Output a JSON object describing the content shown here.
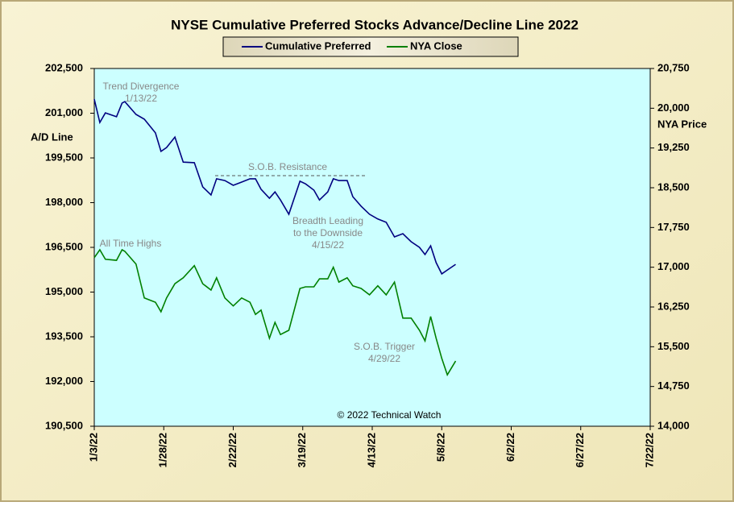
{
  "chart_data": {
    "type": "line",
    "title": "NYSE Cumulative Preferred Stocks Advance/Decline Line 2022",
    "y_label": "A/D Line",
    "y2_label": "NYA Price",
    "x": [
      "2022-01-03",
      "2022-01-05",
      "2022-01-07",
      "2022-01-11",
      "2022-01-13",
      "2022-01-14",
      "2022-01-18",
      "2022-01-21",
      "2022-01-25",
      "2022-01-27",
      "2022-01-29",
      "2022-02-01",
      "2022-02-04",
      "2022-02-08",
      "2022-02-11",
      "2022-02-14",
      "2022-02-16",
      "2022-02-19",
      "2022-02-22",
      "2022-02-25",
      "2022-02-28",
      "2022-03-02",
      "2022-03-04",
      "2022-03-07",
      "2022-03-09",
      "2022-03-11",
      "2022-03-14",
      "2022-03-18",
      "2022-03-20",
      "2022-03-23",
      "2022-03-25",
      "2022-03-28",
      "2022-03-30",
      "2022-04-01",
      "2022-04-04",
      "2022-04-06",
      "2022-04-09",
      "2022-04-12",
      "2022-04-15",
      "2022-04-18",
      "2022-04-21",
      "2022-04-24",
      "2022-04-27",
      "2022-04-30",
      "2022-05-02",
      "2022-05-04",
      "2022-05-06",
      "2022-05-08",
      "2022-05-10",
      "2022-05-13"
    ],
    "series": [
      {
        "name": "Cumulative Preferred",
        "color": "#000080",
        "axis": "y",
        "values": [
          201470,
          200690,
          201010,
          200880,
          201340,
          201390,
          200960,
          200800,
          200340,
          199720,
          199850,
          200200,
          199360,
          199340,
          198530,
          198260,
          198800,
          198740,
          198580,
          198690,
          198800,
          198800,
          198450,
          198150,
          198360,
          198090,
          197610,
          198720,
          198630,
          198420,
          198090,
          198360,
          198800,
          198740,
          198740,
          198200,
          197880,
          197610,
          197450,
          197340,
          196850,
          196960,
          196690,
          196500,
          196260,
          196550,
          195990,
          195610,
          195740,
          195930
        ]
      },
      {
        "name": "NYA Close",
        "color": "#008000",
        "axis": "y2",
        "values": [
          17180,
          17330,
          17150,
          17130,
          17330,
          17300,
          17060,
          16420,
          16340,
          16160,
          16420,
          16690,
          16800,
          17030,
          16690,
          16570,
          16800,
          16420,
          16270,
          16420,
          16340,
          16110,
          16190,
          15660,
          15960,
          15730,
          15810,
          16600,
          16630,
          16630,
          16780,
          16780,
          17000,
          16720,
          16800,
          16650,
          16600,
          16480,
          16650,
          16480,
          16720,
          16040,
          16040,
          15810,
          15610,
          16070,
          15660,
          15280,
          14970,
          15230
        ]
      }
    ],
    "xlim": [
      "2022-01-03",
      "2022-07-22"
    ],
    "xticks": [
      {
        "value": "2022-01-03",
        "label": "1/3/22"
      },
      {
        "value": "2022-01-28",
        "label": "1/28/22"
      },
      {
        "value": "2022-02-22",
        "label": "2/22/22"
      },
      {
        "value": "2022-03-19",
        "label": "3/19/22"
      },
      {
        "value": "2022-04-13",
        "label": "4/13/22"
      },
      {
        "value": "2022-05-08",
        "label": "5/8/22"
      },
      {
        "value": "2022-06-02",
        "label": "6/2/22"
      },
      {
        "value": "2022-06-27",
        "label": "6/27/22"
      },
      {
        "value": "2022-07-22",
        "label": "7/22/22"
      }
    ],
    "ylim": [
      190500,
      202500
    ],
    "yticks": [
      {
        "value": 190500,
        "label": "190,500"
      },
      {
        "value": 192000,
        "label": "192,000"
      },
      {
        "value": 193500,
        "label": "193,500"
      },
      {
        "value": 195000,
        "label": "195,000"
      },
      {
        "value": 196500,
        "label": "196,500"
      },
      {
        "value": 198000,
        "label": "198,000"
      },
      {
        "value": 199500,
        "label": "199,500"
      },
      {
        "value": 201000,
        "label": "201,000"
      },
      {
        "value": 202500,
        "label": "202,500"
      }
    ],
    "y2lim": [
      14000,
      20750
    ],
    "y2ticks": [
      {
        "value": 14000,
        "label": "14,000"
      },
      {
        "value": 14750,
        "label": "14,750"
      },
      {
        "value": 15500,
        "label": "15,500"
      },
      {
        "value": 16250,
        "label": "16,250"
      },
      {
        "value": 17000,
        "label": "17,000"
      },
      {
        "value": 17750,
        "label": "17,750"
      },
      {
        "value": 18500,
        "label": "18,500"
      },
      {
        "value": 19250,
        "label": "19,250"
      },
      {
        "value": 20000,
        "label": "20,000"
      },
      {
        "value": 20750,
        "label": "20,750"
      }
    ],
    "grid": false,
    "annotations": [
      {
        "lines": [
          "Trend Divergence",
          "1/13/22"
        ]
      },
      {
        "lines": [
          "S.O.B. Resistance"
        ]
      },
      {
        "lines": [
          "Breadth Leading",
          "to the Downside",
          "4/15/22"
        ]
      },
      {
        "lines": [
          "All Time Highs"
        ]
      },
      {
        "lines": [
          "S.O.B. Trigger",
          "4/29/22"
        ]
      },
      {
        "lines": [
          "© 2022 Technical Watch"
        ]
      }
    ]
  }
}
